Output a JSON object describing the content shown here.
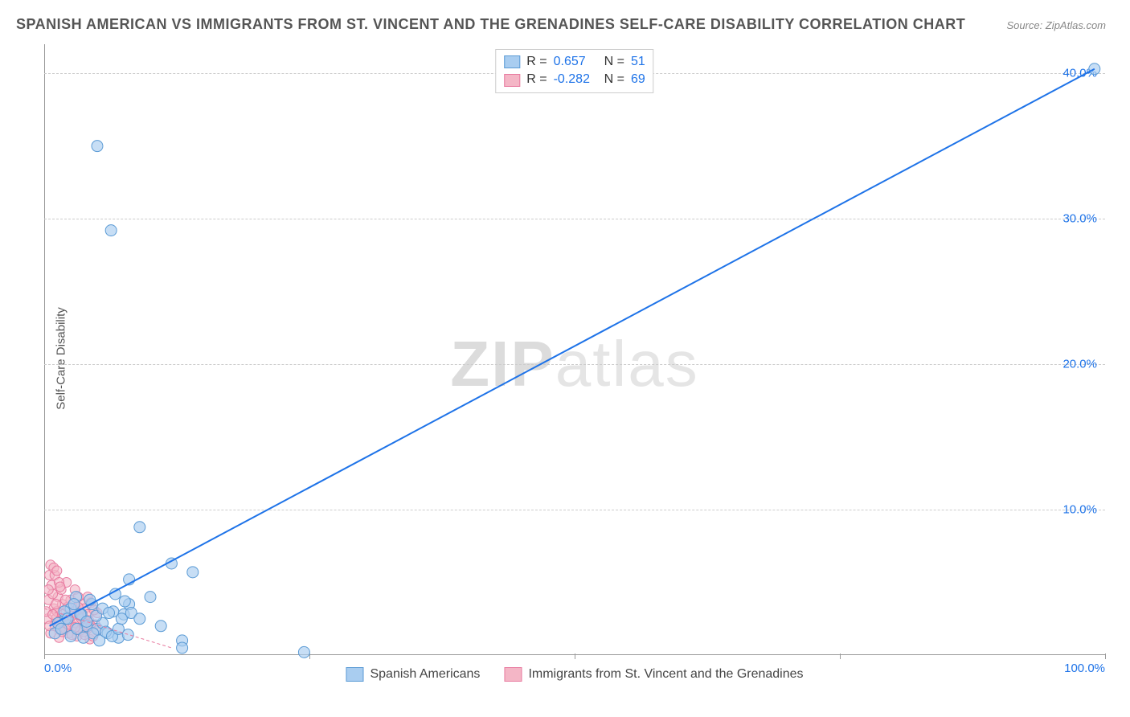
{
  "title": "SPANISH AMERICAN VS IMMIGRANTS FROM ST. VINCENT AND THE GRENADINES SELF-CARE DISABILITY CORRELATION CHART",
  "source": "Source: ZipAtlas.com",
  "ylabel": "Self-Care Disability",
  "watermark_bold": "ZIP",
  "watermark_rest": "atlas",
  "chart": {
    "type": "scatter",
    "xlim": [
      0,
      100
    ],
    "ylim": [
      0,
      42
    ],
    "xticks": [
      0,
      25,
      50,
      75,
      100
    ],
    "xticklabels": [
      "0.0%",
      "",
      "",
      "",
      "100.0%"
    ],
    "yticks": [
      10,
      20,
      30,
      40
    ],
    "yticklabels": [
      "10.0%",
      "20.0%",
      "30.0%",
      "40.0%"
    ],
    "grid_color": "#cccccc",
    "axis_color": "#999999",
    "tick_label_color": "#1e73e8",
    "series": [
      {
        "name": "Spanish Americans",
        "color_fill": "#a9cdf0",
        "color_stroke": "#5b9bd5",
        "marker_radius": 7,
        "marker_opacity": 0.65,
        "R": "0.657",
        "N": "51",
        "trend": {
          "x1": 0.5,
          "y1": 2.0,
          "x2": 99,
          "y2": 40.3,
          "color": "#1e73e8",
          "width": 2
        },
        "points": [
          [
            99,
            40.3
          ],
          [
            5,
            35
          ],
          [
            6.3,
            29.2
          ],
          [
            9,
            8.8
          ],
          [
            14,
            5.7
          ],
          [
            12,
            6.3
          ],
          [
            8,
            5.2
          ],
          [
            2,
            2.5
          ],
          [
            2.5,
            3.2
          ],
          [
            3,
            4
          ],
          [
            3.5,
            2.8
          ],
          [
            4,
            2
          ],
          [
            4.5,
            3.5
          ],
          [
            5,
            1.8
          ],
          [
            5.5,
            2.2
          ],
          [
            6,
            1.5
          ],
          [
            6.5,
            3
          ],
          [
            7,
            1.2
          ],
          [
            7.5,
            2.8
          ],
          [
            8,
            3.5
          ],
          [
            1,
            1.5
          ],
          [
            1.3,
            2.2
          ],
          [
            1.6,
            1.8
          ],
          [
            1.9,
            3
          ],
          [
            2.2,
            2.5
          ],
          [
            2.5,
            1.3
          ],
          [
            2.8,
            3.5
          ],
          [
            3.1,
            1.8
          ],
          [
            3.4,
            2.8
          ],
          [
            3.7,
            1.2
          ],
          [
            4,
            2.3
          ],
          [
            4.3,
            3.8
          ],
          [
            4.6,
            1.5
          ],
          [
            4.9,
            2.7
          ],
          [
            5.2,
            1
          ],
          [
            5.5,
            3.2
          ],
          [
            5.8,
            1.6
          ],
          [
            6.1,
            2.9
          ],
          [
            6.4,
            1.3
          ],
          [
            6.7,
            4.2
          ],
          [
            7,
            1.8
          ],
          [
            7.3,
            2.5
          ],
          [
            7.6,
            3.7
          ],
          [
            7.9,
            1.4
          ],
          [
            8.2,
            2.9
          ],
          [
            11,
            2
          ],
          [
            13,
            1
          ],
          [
            10,
            4
          ],
          [
            9,
            2.5
          ],
          [
            13,
            0.5
          ],
          [
            24.5,
            0.2
          ]
        ]
      },
      {
        "name": "Immigrants from St. Vincent and the Grenadines",
        "color_fill": "#f4b6c6",
        "color_stroke": "#e87ba0",
        "marker_radius": 6,
        "marker_opacity": 0.6,
        "R": "-0.282",
        "N": "69",
        "trend": {
          "x1": 0,
          "y1": 3.2,
          "x2": 12,
          "y2": 0.5,
          "color": "#e87ba0",
          "width": 1,
          "dash": "4 3"
        },
        "points": [
          [
            0.5,
            5.5
          ],
          [
            0.7,
            4.8
          ],
          [
            0.9,
            3.2
          ],
          [
            1.1,
            2.5
          ],
          [
            1.3,
            4.0
          ],
          [
            1.5,
            1.8
          ],
          [
            1.7,
            3.5
          ],
          [
            1.9,
            2.2
          ],
          [
            2.1,
            5.0
          ],
          [
            2.3,
            1.5
          ],
          [
            2.5,
            3.8
          ],
          [
            2.7,
            2.0
          ],
          [
            2.9,
            4.5
          ],
          [
            3.1,
            1.3
          ],
          [
            3.3,
            2.8
          ],
          [
            3.5,
            3.5
          ],
          [
            3.7,
            1.6
          ],
          [
            3.9,
            2.3
          ],
          [
            4.1,
            4.0
          ],
          [
            4.3,
            1.1
          ],
          [
            0.3,
            2.5
          ],
          [
            0.4,
            3.8
          ],
          [
            0.6,
            1.5
          ],
          [
            0.8,
            4.2
          ],
          [
            1.0,
            2.0
          ],
          [
            1.2,
            3.0
          ],
          [
            1.4,
            1.2
          ],
          [
            1.6,
            4.5
          ],
          [
            1.8,
            2.8
          ],
          [
            2.0,
            1.8
          ],
          [
            2.2,
            3.3
          ],
          [
            2.4,
            2.5
          ],
          [
            2.6,
            1.4
          ],
          [
            2.8,
            3.0
          ],
          [
            3.0,
            2.2
          ],
          [
            3.2,
            4.0
          ],
          [
            3.4,
            1.7
          ],
          [
            3.6,
            2.6
          ],
          [
            3.8,
            3.2
          ],
          [
            4.0,
            1.9
          ],
          [
            4.2,
            2.4
          ],
          [
            4.4,
            3.6
          ],
          [
            4.6,
            1.3
          ],
          [
            4.8,
            2.1
          ],
          [
            5.0,
            2.9
          ],
          [
            0.2,
            3.0
          ],
          [
            0.5,
            2.0
          ],
          [
            0.8,
            2.8
          ],
          [
            1.1,
            3.5
          ],
          [
            1.4,
            2.3
          ],
          [
            1.7,
            1.6
          ],
          [
            2.0,
            3.8
          ],
          [
            2.3,
            2.1
          ],
          [
            2.6,
            2.7
          ],
          [
            2.9,
            1.9
          ],
          [
            3.2,
            3.3
          ],
          [
            3.5,
            2.5
          ],
          [
            3.8,
            1.4
          ],
          [
            4.1,
            2.8
          ],
          [
            4.4,
            2.0
          ],
          [
            4.7,
            3.1
          ],
          [
            5.0,
            1.7
          ],
          [
            0.6,
            6.2
          ],
          [
            1.0,
            5.5
          ],
          [
            1.4,
            5.0
          ],
          [
            0.4,
            4.5
          ],
          [
            0.9,
            6.0
          ],
          [
            1.2,
            5.8
          ],
          [
            1.5,
            4.7
          ]
        ]
      }
    ],
    "legend_top": [
      {
        "swatch": "#a9cdf0",
        "swatch_border": "#5b9bd5",
        "r_label": "R =",
        "r_val": "0.657",
        "n_label": "N =",
        "n_val": "51"
      },
      {
        "swatch": "#f4b6c6",
        "swatch_border": "#e87ba0",
        "r_label": "R =",
        "r_val": "-0.282",
        "n_label": "N =",
        "n_val": "69"
      }
    ],
    "legend_bottom": [
      {
        "swatch": "#a9cdf0",
        "swatch_border": "#5b9bd5",
        "label": "Spanish Americans"
      },
      {
        "swatch": "#f4b6c6",
        "swatch_border": "#e87ba0",
        "label": "Immigrants from St. Vincent and the Grenadines"
      }
    ]
  }
}
